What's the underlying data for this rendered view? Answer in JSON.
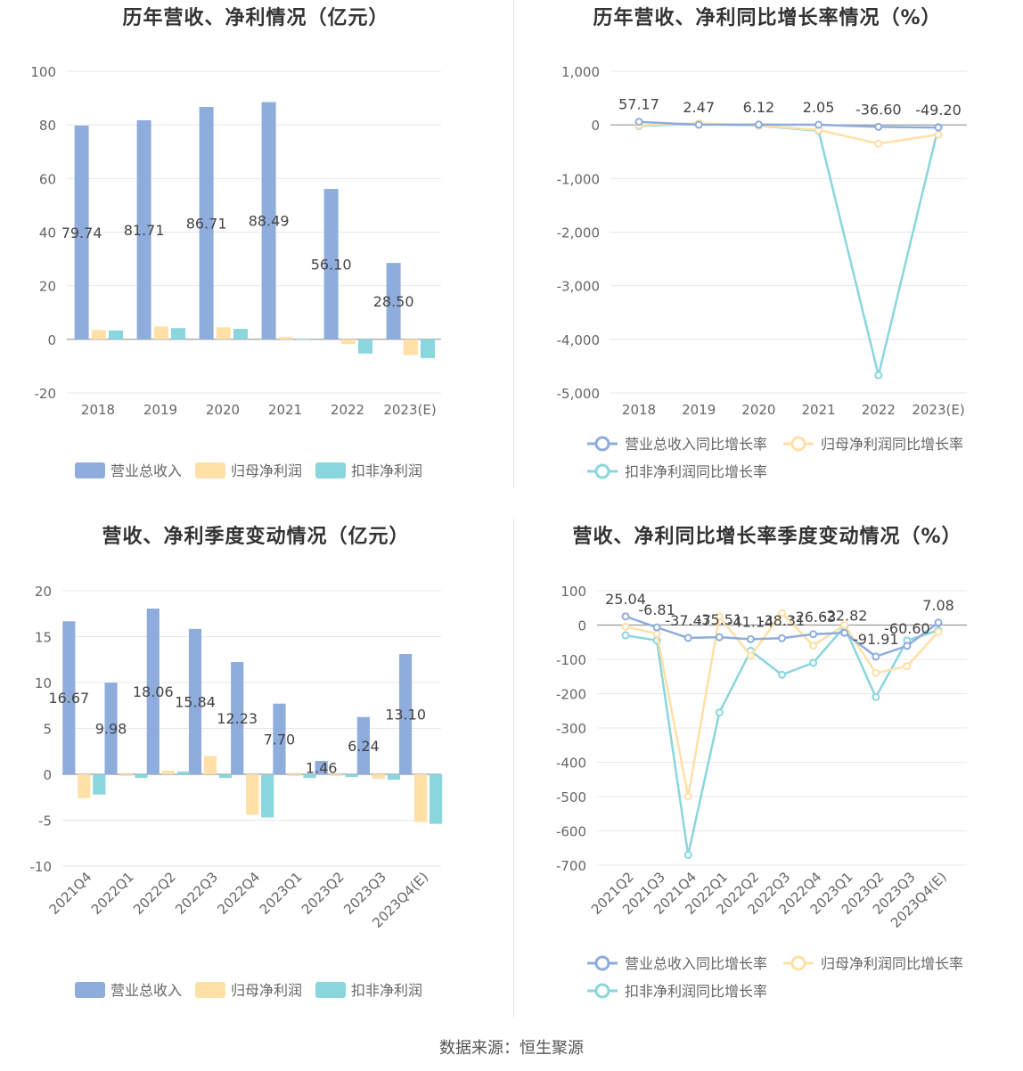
{
  "source": "数据来源：恒生聚源",
  "colors": {
    "revenue": "#8eacdc",
    "net": "#ffe0a6",
    "deducted": "#89d6dc",
    "grid": "#e6e8ef",
    "axis": "#999999",
    "text": "#666666"
  },
  "chart_data": [
    {
      "type": "bar",
      "title": "历年营收、净利情况（亿元）",
      "categories": [
        "2018",
        "2019",
        "2020",
        "2021",
        "2022",
        "2023(E)"
      ],
      "ylim": [
        -20,
        100
      ],
      "yticks": [
        "100",
        "80",
        "60",
        "40",
        "20",
        "0",
        "-20"
      ],
      "series": [
        {
          "name": "营业总收入",
          "values": [
            79.74,
            81.71,
            86.71,
            88.49,
            56.1,
            28.5
          ],
          "labels": [
            "79.74",
            "81.71",
            "86.71",
            "88.49",
            "56.10",
            "28.50"
          ]
        },
        {
          "name": "归母净利润",
          "values": [
            3.5,
            4.8,
            4.5,
            0.9,
            -1.8,
            -5.9
          ]
        },
        {
          "name": "扣非净利润",
          "values": [
            3.3,
            4.2,
            3.9,
            0.1,
            -5.3,
            -7.0
          ]
        }
      ],
      "legend": "bottom"
    },
    {
      "type": "line",
      "title": "历年营收、净利同比增长率情况（%）",
      "categories": [
        "2018",
        "2019",
        "2020",
        "2021",
        "2022",
        "2023(E)"
      ],
      "ylim": [
        -5000,
        1000
      ],
      "yticks": [
        "1,000",
        "0",
        "-1,000",
        "-2,000",
        "-3,000",
        "-4,000",
        "-5,000"
      ],
      "series": [
        {
          "name": "营业总收入同比增长率",
          "values": [
            57.17,
            2.47,
            6.12,
            2.05,
            -36.6,
            -49.2
          ],
          "labels": [
            "57.17",
            "2.47",
            "6.12",
            "2.05",
            "-36.60",
            "-49.20"
          ]
        },
        {
          "name": "归母净利润同比增长率",
          "values": [
            -5,
            30,
            -10,
            -95,
            -350,
            -180
          ]
        },
        {
          "name": "扣非净利润同比增长率",
          "values": [
            -20,
            20,
            -15,
            -110,
            -4670,
            -40
          ]
        }
      ],
      "legend": "bottom"
    },
    {
      "type": "bar",
      "title": "营收、净利季度变动情况（亿元）",
      "categories": [
        "2021Q4",
        "2022Q1",
        "2022Q2",
        "2022Q3",
        "2022Q4",
        "2023Q1",
        "2023Q2",
        "2023Q3",
        "2023Q4(E)"
      ],
      "ylim": [
        -10,
        20
      ],
      "yticks": [
        "20",
        "15",
        "10",
        "5",
        "0",
        "-5",
        "-10"
      ],
      "series": [
        {
          "name": "营业总收入",
          "values": [
            16.67,
            9.98,
            18.06,
            15.84,
            12.23,
            7.7,
            1.46,
            6.24,
            13.1
          ],
          "labels": [
            "16.67",
            "9.98",
            "18.06",
            "15.84",
            "12.23",
            "7.70",
            "1.46",
            "6.24",
            "13.10"
          ]
        },
        {
          "name": "归母净利润",
          "values": [
            -2.6,
            -0.2,
            0.4,
            2.0,
            -4.4,
            -0.2,
            -0.2,
            -0.5,
            -5.2
          ]
        },
        {
          "name": "扣非净利润",
          "values": [
            -2.2,
            -0.4,
            0.3,
            -0.4,
            -4.7,
            -0.4,
            -0.3,
            -0.6,
            -5.4
          ]
        }
      ],
      "legend": "bottom"
    },
    {
      "type": "line",
      "title": "营收、净利同比增长率季度变动情况（%）",
      "categories": [
        "2021Q2",
        "2021Q3",
        "2021Q4",
        "2022Q1",
        "2022Q2",
        "2022Q3",
        "2022Q4",
        "2023Q1",
        "2023Q2",
        "2023Q3",
        "2023Q4(E)"
      ],
      "ylim": [
        -700,
        100
      ],
      "yticks": [
        "100",
        "0",
        "-100",
        "-200",
        "-300",
        "-400",
        "-500",
        "-600",
        "-700"
      ],
      "series": [
        {
          "name": "营业总收入同比增长率",
          "values": [
            25.04,
            -6.81,
            -37.47,
            -35.51,
            -41.14,
            -38.31,
            -26.63,
            -22.82,
            -91.91,
            -60.6,
            7.08
          ],
          "labels": [
            "25.04",
            "-6.81",
            "-37.47",
            "-35.51",
            "-41.14",
            "-38.31",
            "-26.63",
            "-22.82",
            "-91.91",
            "-60.60",
            "7.08"
          ]
        },
        {
          "name": "归母净利润同比增长率",
          "values": [
            -5,
            -25,
            -500,
            25,
            -90,
            35,
            -60,
            0,
            -140,
            -120,
            -20
          ]
        },
        {
          "name": "扣非净利润同比增长率",
          "values": [
            -30,
            -45,
            -670,
            -255,
            -75,
            -145,
            -110,
            -5,
            -210,
            -45,
            -15
          ]
        }
      ],
      "legend": "bottom"
    }
  ]
}
